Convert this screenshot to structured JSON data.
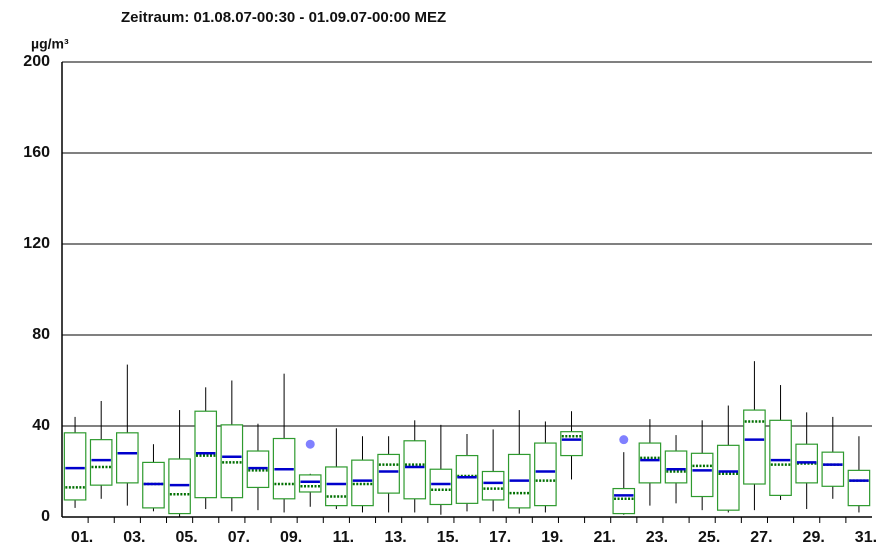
{
  "chart_data": {
    "type": "box",
    "title": "Zeitraum: 01.08.07-00:30 - 01.09.07-00:00 MEZ",
    "y_label": "µg/m³",
    "categories": [
      "01.",
      null,
      "03.",
      null,
      "05.",
      null,
      "07.",
      null,
      "09.",
      null,
      "11.",
      null,
      "13.",
      null,
      "15.",
      null,
      "17.",
      null,
      "19.",
      null,
      "21.",
      null,
      "23.",
      null,
      "25.",
      null,
      "27.",
      null,
      "29.",
      null,
      "31."
    ],
    "boxes": [
      {
        "low": 4,
        "q1": 7.5,
        "median": 13,
        "mean": 21.5,
        "q3": 37,
        "high": 44
      },
      {
        "low": 8,
        "q1": 14,
        "median": 22,
        "mean": 25,
        "q3": 34,
        "high": 51
      },
      {
        "low": 5,
        "q1": 15,
        "median": 28,
        "mean": 28,
        "q3": 37,
        "high": 67
      },
      {
        "low": 2.5,
        "q1": 4,
        "median": 14.5,
        "mean": 14.5,
        "q3": 24,
        "high": 32
      },
      {
        "low": 0,
        "q1": 1.5,
        "median": 10,
        "mean": 14,
        "q3": 25.5,
        "high": 47
      },
      {
        "low": 3.5,
        "q1": 8.5,
        "median": 27,
        "mean": 28,
        "q3": 46.5,
        "high": 57
      },
      {
        "low": 2.5,
        "q1": 8.5,
        "median": 24,
        "mean": 26.5,
        "q3": 40.5,
        "high": 60
      },
      {
        "low": 3,
        "q1": 13,
        "median": 20.5,
        "mean": 21.5,
        "q3": 29,
        "high": 41
      },
      {
        "low": 2,
        "q1": 8,
        "median": 14.5,
        "mean": 21,
        "q3": 34.5,
        "high": 63
      },
      {
        "low": 4.5,
        "q1": 11,
        "median": 13.5,
        "mean": 15.5,
        "q3": 18.5,
        "high": 19,
        "outliers": [
          32
        ]
      },
      {
        "low": 3.5,
        "q1": 5,
        "median": 9,
        "mean": 14.5,
        "q3": 22,
        "high": 39
      },
      {
        "low": 2,
        "q1": 5,
        "median": 14.5,
        "mean": 16,
        "q3": 25,
        "high": 35.5
      },
      {
        "low": 2,
        "q1": 10.5,
        "median": 23,
        "mean": 20,
        "q3": 27.5,
        "high": 35.5
      },
      {
        "low": 2,
        "q1": 8,
        "median": 23,
        "mean": 22,
        "q3": 33.5,
        "high": 42.5
      },
      {
        "low": 1,
        "q1": 5.5,
        "median": 12,
        "mean": 14.5,
        "q3": 21,
        "high": 40.5
      },
      {
        "low": 2.5,
        "q1": 6,
        "median": 18,
        "mean": 17.5,
        "q3": 27,
        "high": 36.5
      },
      {
        "low": 2.5,
        "q1": 7.5,
        "median": 12.5,
        "mean": 15,
        "q3": 20,
        "high": 38.5
      },
      {
        "low": 1.5,
        "q1": 4,
        "median": 10.5,
        "mean": 16,
        "q3": 27.5,
        "high": 47
      },
      {
        "low": 2,
        "q1": 5,
        "median": 16,
        "mean": 20,
        "q3": 32.5,
        "high": 42
      },
      {
        "low": 16.5,
        "q1": 27,
        "median": 35.5,
        "mean": 34,
        "q3": 37.5,
        "high": 46.5
      },
      null,
      {
        "low": 1,
        "q1": 1.5,
        "median": 8,
        "mean": 9.5,
        "q3": 12.5,
        "high": 28.5,
        "outliers": [
          34
        ]
      },
      {
        "low": 5,
        "q1": 15,
        "median": 26,
        "mean": 25,
        "q3": 32.5,
        "high": 43
      },
      {
        "low": 6,
        "q1": 15,
        "median": 20,
        "mean": 21,
        "q3": 29,
        "high": 36
      },
      {
        "low": 3,
        "q1": 9,
        "median": 22.5,
        "mean": 20.5,
        "q3": 28,
        "high": 42.5
      },
      {
        "low": 2,
        "q1": 3,
        "median": 19,
        "mean": 20,
        "q3": 31.5,
        "high": 49
      },
      {
        "low": 3,
        "q1": 14.5,
        "median": 42,
        "mean": 34,
        "q3": 47,
        "high": 68.5
      },
      {
        "low": 7.5,
        "q1": 9.5,
        "median": 23,
        "mean": 25,
        "q3": 42.5,
        "high": 58
      },
      {
        "low": 3.5,
        "q1": 15,
        "median": 23.5,
        "mean": 24,
        "q3": 32,
        "high": 46
      },
      {
        "low": 8,
        "q1": 13.5,
        "median": 23,
        "mean": 23,
        "q3": 28.5,
        "high": 44
      },
      {
        "low": 2,
        "q1": 5,
        "median": 16,
        "mean": 16,
        "q3": 20.5,
        "high": 35.5
      }
    ],
    "box_color": "#2e9a2e",
    "mean_color": "#0000cc",
    "median_color": "#006f00",
    "outlier_color": "#8080ff",
    "ylim": [
      0,
      200
    ],
    "yticks": [
      0,
      40,
      80,
      120,
      160,
      200
    ],
    "grid": true
  }
}
